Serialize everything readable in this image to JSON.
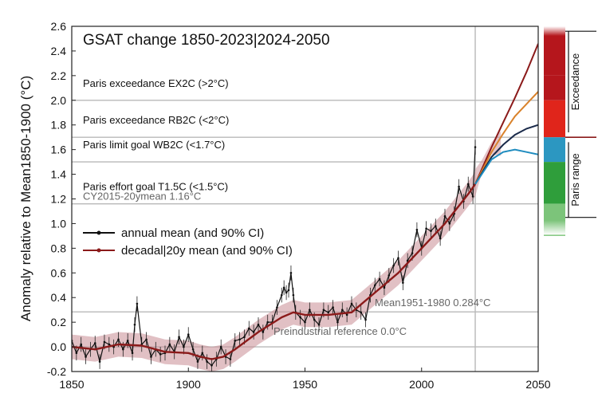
{
  "chart_data": {
    "type": "line",
    "title": "GSAT change 1850-2023|2024-2050",
    "xlabel": "",
    "ylabel": "Anomaly relative to Mean1850-1900 (°C)",
    "xlim": [
      1850,
      2050
    ],
    "ylim": [
      -0.2,
      2.6
    ],
    "x_ticks": [
      1850,
      1900,
      1950,
      2000,
      2050
    ],
    "y_ticks": [
      -0.2,
      0.0,
      0.2,
      0.4,
      0.6,
      0.8,
      1.0,
      1.2,
      1.4,
      1.6,
      1.8,
      2.0,
      2.2,
      2.4,
      2.6
    ],
    "present_year": 2023,
    "thresholds": [
      {
        "value": 2.0,
        "label": "Paris exceedance EX2C (>2°C)"
      },
      {
        "value": 1.7,
        "label": "Paris exceedance RB2C (<2°C)"
      },
      {
        "value": 1.5,
        "label": "Paris limit goal WB2C (<1.7°C)"
      },
      {
        "value": 1.16,
        "label": "Paris effort goal T1.5C (<1.5°C)"
      }
    ],
    "reference_lines": [
      {
        "value": 1.16,
        "label": "CY2015-20ymean 1.16°C"
      },
      {
        "value": 0.284,
        "label": "Mean1951-1980 0.284°C"
      },
      {
        "value": 0.0,
        "label": "Preindustrial reference 0.0°C"
      }
    ],
    "legend": [
      {
        "label": "annual mean (and 90% CI)",
        "color": "#111111"
      },
      {
        "label": "decadal|20y mean (and 90% CI)",
        "color": "#8b1a1a"
      }
    ],
    "series": [
      {
        "name": "annual mean (and 90% CI)",
        "x": [
          1850,
          1852,
          1854,
          1856,
          1858,
          1860,
          1862,
          1864,
          1866,
          1868,
          1870,
          1872,
          1874,
          1876,
          1877,
          1878,
          1880,
          1882,
          1884,
          1886,
          1888,
          1890,
          1892,
          1894,
          1896,
          1898,
          1900,
          1902,
          1904,
          1906,
          1908,
          1910,
          1912,
          1914,
          1916,
          1918,
          1920,
          1922,
          1924,
          1926,
          1928,
          1930,
          1932,
          1934,
          1936,
          1938,
          1940,
          1941,
          1942,
          1943,
          1944,
          1945,
          1946,
          1948,
          1950,
          1952,
          1954,
          1956,
          1958,
          1960,
          1962,
          1964,
          1966,
          1968,
          1970,
          1972,
          1974,
          1976,
          1978,
          1980,
          1982,
          1984,
          1986,
          1988,
          1990,
          1992,
          1994,
          1996,
          1998,
          2000,
          2002,
          2004,
          2006,
          2008,
          2010,
          2012,
          2014,
          2016,
          2018,
          2020,
          2022,
          2023
        ],
        "y": [
          0.05,
          -0.05,
          0.02,
          -0.08,
          -0.02,
          0.03,
          -0.12,
          0.04,
          0.02,
          0.0,
          0.06,
          -0.02,
          0.05,
          -0.05,
          0.18,
          0.35,
          0.02,
          0.06,
          -0.08,
          -0.02,
          -0.06,
          -0.05,
          0.02,
          -0.04,
          0.08,
          0.0,
          0.1,
          -0.02,
          -0.12,
          -0.05,
          -0.12,
          -0.15,
          -0.1,
          0.0,
          -0.08,
          -0.1,
          0.05,
          0.06,
          0.08,
          0.15,
          0.12,
          0.18,
          0.12,
          0.2,
          0.2,
          0.32,
          0.42,
          0.48,
          0.44,
          0.46,
          0.6,
          0.42,
          0.28,
          0.24,
          0.2,
          0.3,
          0.22,
          0.18,
          0.3,
          0.28,
          0.32,
          0.2,
          0.3,
          0.26,
          0.35,
          0.3,
          0.28,
          0.22,
          0.42,
          0.5,
          0.55,
          0.48,
          0.58,
          0.66,
          0.72,
          0.52,
          0.7,
          0.76,
          0.95,
          0.8,
          0.96,
          0.94,
          0.98,
          0.88,
          1.06,
          1.0,
          1.08,
          1.3,
          1.18,
          1.32,
          1.22,
          1.62
        ]
      },
      {
        "name": "decadal|20y mean (and 90% CI)",
        "x": [
          1850,
          1860,
          1870,
          1880,
          1890,
          1900,
          1905,
          1910,
          1915,
          1920,
          1930,
          1940,
          1945,
          1950,
          1955,
          1960,
          1970,
          1980,
          1990,
          2000,
          2010,
          2020,
          2023
        ],
        "y": [
          0.0,
          -0.02,
          0.02,
          0.01,
          -0.04,
          -0.05,
          -0.08,
          -0.1,
          -0.08,
          -0.02,
          0.12,
          0.24,
          0.28,
          0.26,
          0.26,
          0.26,
          0.28,
          0.44,
          0.6,
          0.8,
          1.0,
          1.24,
          1.32
        ]
      }
    ],
    "projections": [
      {
        "name": "EX2C",
        "color": "#8b1a1a",
        "x": [
          2023,
          2030,
          2035,
          2040,
          2045,
          2050
        ],
        "y": [
          1.32,
          1.62,
          1.82,
          2.02,
          2.23,
          2.46
        ]
      },
      {
        "name": "RB2C",
        "color": "#d9822b",
        "x": [
          2023,
          2030,
          2035,
          2040,
          2045,
          2050
        ],
        "y": [
          1.32,
          1.58,
          1.73,
          1.87,
          1.97,
          2.07
        ]
      },
      {
        "name": "WB2C",
        "color": "#1a2a4a",
        "x": [
          2023,
          2030,
          2035,
          2040,
          2045,
          2050
        ],
        "y": [
          1.32,
          1.54,
          1.64,
          1.72,
          1.77,
          1.8
        ]
      },
      {
        "name": "T1.5C",
        "color": "#1f8cbf",
        "x": [
          2023,
          2030,
          2035,
          2040,
          2045,
          2050
        ],
        "y": [
          1.32,
          1.52,
          1.58,
          1.6,
          1.58,
          1.56
        ]
      }
    ],
    "side_bar": {
      "labels": [
        "Exceedance",
        "Paris range"
      ],
      "segments": [
        {
          "from": 2.2,
          "to": 2.6,
          "color": "#b5161c"
        },
        {
          "from": 2.0,
          "to": 2.2,
          "color": "#b5161c"
        },
        {
          "from": 1.7,
          "to": 2.0,
          "color": "#e0251b"
        },
        {
          "from": 1.5,
          "to": 1.7,
          "color": "#2c97c1"
        },
        {
          "from": 1.16,
          "to": 1.5,
          "color": "#2f9e3b"
        },
        {
          "from": 0.9,
          "to": 1.16,
          "color": "#7cc47a"
        }
      ]
    },
    "grid": false,
    "legend_position": "middle-left"
  }
}
